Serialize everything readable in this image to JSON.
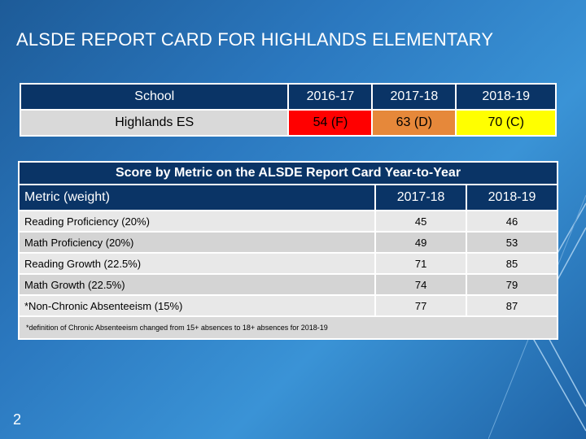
{
  "slide": {
    "title": "ALSDE REPORT CARD FOR HIGHLANDS ELEMENTARY",
    "page_number": "2"
  },
  "school_table": {
    "headers": [
      "School",
      "2016-17",
      "2017-18",
      "2018-19"
    ],
    "row": {
      "school": "Highlands ES",
      "scores": [
        "54 (F)",
        "63 (D)",
        "70 (C)"
      ]
    },
    "colors": {
      "F": "#ff0000",
      "D": "#e6883a",
      "C": "#ffff00",
      "header_bg": "#0a3466"
    }
  },
  "metric_table": {
    "caption": "Score by Metric on the ALSDE Report Card Year-to-Year",
    "headers": [
      "Metric (weight)",
      "2017-18",
      "2018-19"
    ],
    "rows": [
      {
        "metric": "Reading Proficiency (20%)",
        "y2017_18": "45",
        "y2018_19": "46"
      },
      {
        "metric": "Math Proficiency (20%)",
        "y2017_18": "49",
        "y2018_19": "53"
      },
      {
        "metric": "Reading Growth (22.5%)",
        "y2017_18": "71",
        "y2018_19": "85"
      },
      {
        "metric": "Math Growth (22.5%)",
        "y2017_18": "74",
        "y2018_19": "79"
      },
      {
        "metric": "*Non-Chronic Absenteeism (15%)",
        "y2017_18": "77",
        "y2018_19": "87"
      }
    ],
    "footnote": "*definition of Chronic Absenteeism changed from 15+ absences to 18+ absences for 2018-19"
  }
}
